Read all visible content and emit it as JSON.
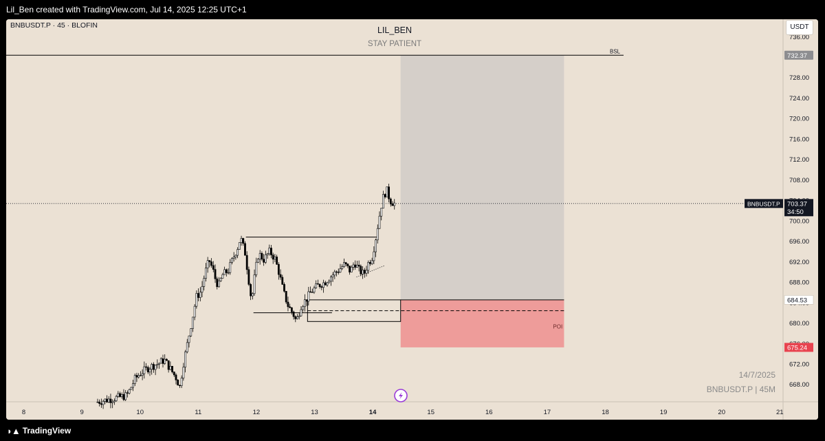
{
  "header": {
    "credit": "Lil_Ben created with TradingView.com, Jul 14, 2025 12:25 UTC+1"
  },
  "chart": {
    "symbol_line": "BNBUSDT.P · 45 · BLOFIN",
    "title": "LIL_BEN",
    "subtitle": "STAY PATIENT",
    "currency": "USDT",
    "stamp_date": "14/7/2025",
    "stamp_symbol": "BNBUSDT.P | 45M",
    "annotations": {
      "bsl": "BSL",
      "poi": "POI"
    },
    "badges": {
      "symbol": "BNBUSDT.P",
      "last_price": "703.37",
      "countdown": "34:50",
      "bsl_price": "732.37",
      "entry_price": "684.53",
      "stop_price": "675.24"
    },
    "colors": {
      "background": "#ebe1d4",
      "profit_zone": "#d4cec8",
      "stop_zone": "#ee9c9a",
      "stop_badge": "#e8434f",
      "bsl_badge": "#8d8d90"
    }
  },
  "bottombar": {
    "brand": "TradingView"
  },
  "chart_data": {
    "type": "candlestick",
    "x_ticks": [
      "8",
      "9",
      "10",
      "11",
      "12",
      "13",
      "14",
      "15",
      "16",
      "17",
      "18",
      "19",
      "20",
      "21"
    ],
    "y_ticks": [
      "736.00",
      "732.00",
      "728.00",
      "724.00",
      "720.00",
      "716.00",
      "712.00",
      "708.00",
      "704.00",
      "700.00",
      "696.00",
      "692.00",
      "688.00",
      "684.00",
      "680.00",
      "676.00",
      "672.00",
      "668.00"
    ],
    "ylim": [
      664.6,
      739.4
    ],
    "price_path_days": [
      [
        9.27,
        664.5
      ],
      [
        9.8,
        665.8
      ],
      [
        9.86,
        667
      ],
      [
        9.94,
        669
      ],
      [
        10.05,
        670.3
      ],
      [
        10.2,
        671.4
      ],
      [
        10.35,
        672.1
      ],
      [
        10.45,
        672.8
      ],
      [
        10.55,
        671.1
      ],
      [
        10.65,
        669.3
      ],
      [
        10.72,
        667.4
      ],
      [
        10.76,
        671.1
      ],
      [
        10.82,
        674.5
      ],
      [
        10.88,
        678
      ],
      [
        10.95,
        682.1
      ],
      [
        11.0,
        685.1
      ],
      [
        11.08,
        686.2
      ],
      [
        11.15,
        689.8
      ],
      [
        11.22,
        692.3
      ],
      [
        11.28,
        690.6
      ],
      [
        11.33,
        688.5
      ],
      [
        11.38,
        687.2
      ],
      [
        11.45,
        689.4
      ],
      [
        11.55,
        690.3
      ],
      [
        11.63,
        692.6
      ],
      [
        11.71,
        694.8
      ],
      [
        11.76,
        696.7
      ],
      [
        11.84,
        693.6
      ],
      [
        11.9,
        688.5
      ],
      [
        11.95,
        684.2
      ],
      [
        12.01,
        689.9
      ],
      [
        12.07,
        693.6
      ],
      [
        12.16,
        692.4
      ],
      [
        12.26,
        694
      ],
      [
        12.35,
        692.6
      ],
      [
        12.42,
        689.9
      ],
      [
        12.5,
        686
      ],
      [
        12.58,
        683.3
      ],
      [
        12.66,
        681.9
      ],
      [
        12.72,
        680.3
      ],
      [
        12.8,
        683.4
      ],
      [
        12.88,
        684.5
      ],
      [
        12.98,
        686.2
      ],
      [
        13.1,
        687.4
      ],
      [
        13.2,
        687.9
      ],
      [
        13.32,
        689.2
      ],
      [
        13.45,
        690.4
      ],
      [
        13.55,
        691.5
      ],
      [
        13.65,
        690.1
      ],
      [
        13.72,
        691.9
      ],
      [
        13.8,
        690.3
      ],
      [
        13.88,
        689.5
      ],
      [
        13.95,
        691.6
      ],
      [
        14.02,
        692.8
      ],
      [
        14.08,
        696.3
      ],
      [
        14.14,
        700.5
      ],
      [
        14.2,
        704.2
      ],
      [
        14.27,
        706.1
      ],
      [
        14.33,
        704
      ],
      [
        14.4,
        703.37
      ]
    ],
    "levels": [
      {
        "label": "BSL",
        "price": 732.37
      },
      {
        "label": "entry",
        "price": 684.53
      },
      {
        "label": "stop",
        "price": 675.24
      },
      {
        "label": "last",
        "price": 703.37
      }
    ],
    "boxes": [
      {
        "name": "profit-zone",
        "from_day": 14.48,
        "to_day": 17.29,
        "low": 684.53,
        "high": 732.37
      },
      {
        "name": "stop-zone",
        "from_day": 14.48,
        "to_day": 17.29,
        "low": 675.24,
        "high": 684.53
      },
      {
        "name": "range-top",
        "from_day": 11.82,
        "to_day": 14.07,
        "low": 696.8,
        "high": 696.8
      },
      {
        "name": "poi-block",
        "from_day": 12.88,
        "to_day": 14.48,
        "low": 680.3,
        "high": 684.53
      },
      {
        "name": "demand-low",
        "from_day": 11.95,
        "to_day": 13.3,
        "low": 682.0,
        "high": 682.0
      }
    ]
  }
}
